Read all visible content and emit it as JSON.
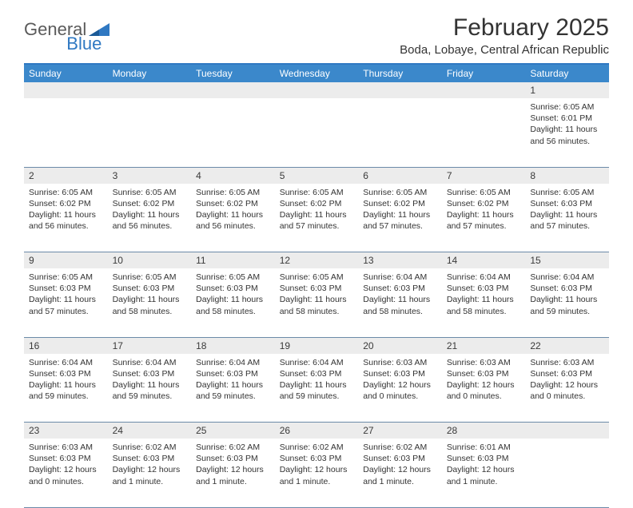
{
  "brand": {
    "main": "General",
    "accent": "Blue"
  },
  "title": "February 2025",
  "location": "Boda, Lobaye, Central African Republic",
  "colors": {
    "header_bg": "#3b88cb",
    "header_border": "#2f78c2",
    "daynum_bg": "#ececec",
    "row_divider": "#6b8aa8",
    "text": "#333333",
    "logo_gray": "#5a5a5a",
    "logo_blue": "#2f78c2"
  },
  "weekdays": [
    "Sunday",
    "Monday",
    "Tuesday",
    "Wednesday",
    "Thursday",
    "Friday",
    "Saturday"
  ],
  "weeks": [
    [
      {
        "n": "",
        "sr": "",
        "ss": "",
        "dl": ""
      },
      {
        "n": "",
        "sr": "",
        "ss": "",
        "dl": ""
      },
      {
        "n": "",
        "sr": "",
        "ss": "",
        "dl": ""
      },
      {
        "n": "",
        "sr": "",
        "ss": "",
        "dl": ""
      },
      {
        "n": "",
        "sr": "",
        "ss": "",
        "dl": ""
      },
      {
        "n": "",
        "sr": "",
        "ss": "",
        "dl": ""
      },
      {
        "n": "1",
        "sr": "6:05 AM",
        "ss": "6:01 PM",
        "dl": "11 hours and 56 minutes."
      }
    ],
    [
      {
        "n": "2",
        "sr": "6:05 AM",
        "ss": "6:02 PM",
        "dl": "11 hours and 56 minutes."
      },
      {
        "n": "3",
        "sr": "6:05 AM",
        "ss": "6:02 PM",
        "dl": "11 hours and 56 minutes."
      },
      {
        "n": "4",
        "sr": "6:05 AM",
        "ss": "6:02 PM",
        "dl": "11 hours and 56 minutes."
      },
      {
        "n": "5",
        "sr": "6:05 AM",
        "ss": "6:02 PM",
        "dl": "11 hours and 57 minutes."
      },
      {
        "n": "6",
        "sr": "6:05 AM",
        "ss": "6:02 PM",
        "dl": "11 hours and 57 minutes."
      },
      {
        "n": "7",
        "sr": "6:05 AM",
        "ss": "6:02 PM",
        "dl": "11 hours and 57 minutes."
      },
      {
        "n": "8",
        "sr": "6:05 AM",
        "ss": "6:03 PM",
        "dl": "11 hours and 57 minutes."
      }
    ],
    [
      {
        "n": "9",
        "sr": "6:05 AM",
        "ss": "6:03 PM",
        "dl": "11 hours and 57 minutes."
      },
      {
        "n": "10",
        "sr": "6:05 AM",
        "ss": "6:03 PM",
        "dl": "11 hours and 58 minutes."
      },
      {
        "n": "11",
        "sr": "6:05 AM",
        "ss": "6:03 PM",
        "dl": "11 hours and 58 minutes."
      },
      {
        "n": "12",
        "sr": "6:05 AM",
        "ss": "6:03 PM",
        "dl": "11 hours and 58 minutes."
      },
      {
        "n": "13",
        "sr": "6:04 AM",
        "ss": "6:03 PM",
        "dl": "11 hours and 58 minutes."
      },
      {
        "n": "14",
        "sr": "6:04 AM",
        "ss": "6:03 PM",
        "dl": "11 hours and 58 minutes."
      },
      {
        "n": "15",
        "sr": "6:04 AM",
        "ss": "6:03 PM",
        "dl": "11 hours and 59 minutes."
      }
    ],
    [
      {
        "n": "16",
        "sr": "6:04 AM",
        "ss": "6:03 PM",
        "dl": "11 hours and 59 minutes."
      },
      {
        "n": "17",
        "sr": "6:04 AM",
        "ss": "6:03 PM",
        "dl": "11 hours and 59 minutes."
      },
      {
        "n": "18",
        "sr": "6:04 AM",
        "ss": "6:03 PM",
        "dl": "11 hours and 59 minutes."
      },
      {
        "n": "19",
        "sr": "6:04 AM",
        "ss": "6:03 PM",
        "dl": "11 hours and 59 minutes."
      },
      {
        "n": "20",
        "sr": "6:03 AM",
        "ss": "6:03 PM",
        "dl": "12 hours and 0 minutes."
      },
      {
        "n": "21",
        "sr": "6:03 AM",
        "ss": "6:03 PM",
        "dl": "12 hours and 0 minutes."
      },
      {
        "n": "22",
        "sr": "6:03 AM",
        "ss": "6:03 PM",
        "dl": "12 hours and 0 minutes."
      }
    ],
    [
      {
        "n": "23",
        "sr": "6:03 AM",
        "ss": "6:03 PM",
        "dl": "12 hours and 0 minutes."
      },
      {
        "n": "24",
        "sr": "6:02 AM",
        "ss": "6:03 PM",
        "dl": "12 hours and 1 minute."
      },
      {
        "n": "25",
        "sr": "6:02 AM",
        "ss": "6:03 PM",
        "dl": "12 hours and 1 minute."
      },
      {
        "n": "26",
        "sr": "6:02 AM",
        "ss": "6:03 PM",
        "dl": "12 hours and 1 minute."
      },
      {
        "n": "27",
        "sr": "6:02 AM",
        "ss": "6:03 PM",
        "dl": "12 hours and 1 minute."
      },
      {
        "n": "28",
        "sr": "6:01 AM",
        "ss": "6:03 PM",
        "dl": "12 hours and 1 minute."
      },
      {
        "n": "",
        "sr": "",
        "ss": "",
        "dl": ""
      }
    ]
  ],
  "labels": {
    "sunrise": "Sunrise:",
    "sunset": "Sunset:",
    "daylight": "Daylight:"
  }
}
